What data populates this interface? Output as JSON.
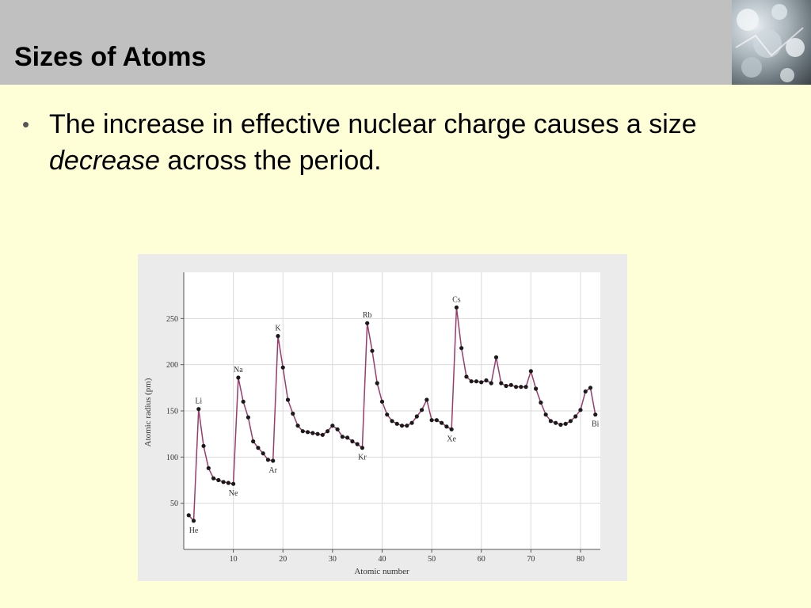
{
  "slide": {
    "title": "Sizes of Atoms",
    "bullet": {
      "part1": "The increase in effective nuclear charge causes a size ",
      "emphasis": "decrease",
      "part2": " across the period."
    }
  },
  "colors": {
    "line": "#9b3b6b",
    "point": "#1a1a1a",
    "title_bar": "#c0c0c0",
    "background": "#ffffd7"
  },
  "corner_image": {
    "icon": "ice-crystal-photo"
  },
  "chart_data": {
    "type": "line",
    "title": "",
    "xlabel": "Atomic number",
    "ylabel": "Atomic radius (pm)",
    "xlim": [
      0,
      84
    ],
    "ylim": [
      0,
      300
    ],
    "xticks": [
      10,
      20,
      30,
      40,
      50,
      60,
      70,
      80
    ],
    "yticks": [
      50,
      100,
      150,
      200,
      250
    ],
    "grid": true,
    "x": [
      1,
      2,
      3,
      4,
      5,
      6,
      7,
      8,
      9,
      10,
      11,
      12,
      13,
      14,
      15,
      16,
      17,
      18,
      19,
      20,
      21,
      22,
      23,
      24,
      25,
      26,
      27,
      28,
      29,
      30,
      31,
      32,
      33,
      34,
      35,
      36,
      37,
      38,
      39,
      40,
      41,
      42,
      43,
      44,
      45,
      46,
      47,
      48,
      49,
      50,
      51,
      52,
      53,
      54,
      55,
      56,
      57,
      58,
      59,
      60,
      61,
      62,
      63,
      64,
      65,
      66,
      67,
      68,
      69,
      70,
      71,
      72,
      73,
      74,
      75,
      76,
      77,
      78,
      79,
      80,
      81,
      82,
      83
    ],
    "y": [
      37,
      31,
      152,
      112,
      88,
      77,
      75,
      73,
      72,
      71,
      186,
      160,
      143,
      117,
      110,
      104,
      97,
      96,
      231,
      197,
      162,
      147,
      134,
      128,
      127,
      126,
      125,
      124,
      128,
      134,
      130,
      122,
      121,
      117,
      114,
      110,
      245,
      215,
      180,
      160,
      146,
      139,
      136,
      134,
      134,
      137,
      144,
      151,
      162,
      140,
      140,
      137,
      133,
      130,
      262,
      218,
      187,
      182,
      182,
      181,
      183,
      180,
      208,
      180,
      177,
      178,
      176,
      176,
      176,
      193,
      174,
      159,
      146,
      139,
      137,
      135,
      136,
      139,
      144,
      151,
      171,
      175,
      146
    ],
    "annotations": [
      {
        "label": "He",
        "x": 2,
        "y": 31,
        "pos": "below"
      },
      {
        "label": "Li",
        "x": 3,
        "y": 152,
        "pos": "above"
      },
      {
        "label": "Ne",
        "x": 10,
        "y": 71,
        "pos": "below"
      },
      {
        "label": "Na",
        "x": 11,
        "y": 186,
        "pos": "above"
      },
      {
        "label": "Ar",
        "x": 18,
        "y": 96,
        "pos": "below"
      },
      {
        "label": "K",
        "x": 19,
        "y": 231,
        "pos": "above"
      },
      {
        "label": "Kr",
        "x": 36,
        "y": 110,
        "pos": "below"
      },
      {
        "label": "Rb",
        "x": 37,
        "y": 245,
        "pos": "above"
      },
      {
        "label": "Xe",
        "x": 54,
        "y": 130,
        "pos": "below"
      },
      {
        "label": "Cs",
        "x": 55,
        "y": 262,
        "pos": "above"
      },
      {
        "label": "Bi",
        "x": 83,
        "y": 146,
        "pos": "below"
      }
    ]
  }
}
